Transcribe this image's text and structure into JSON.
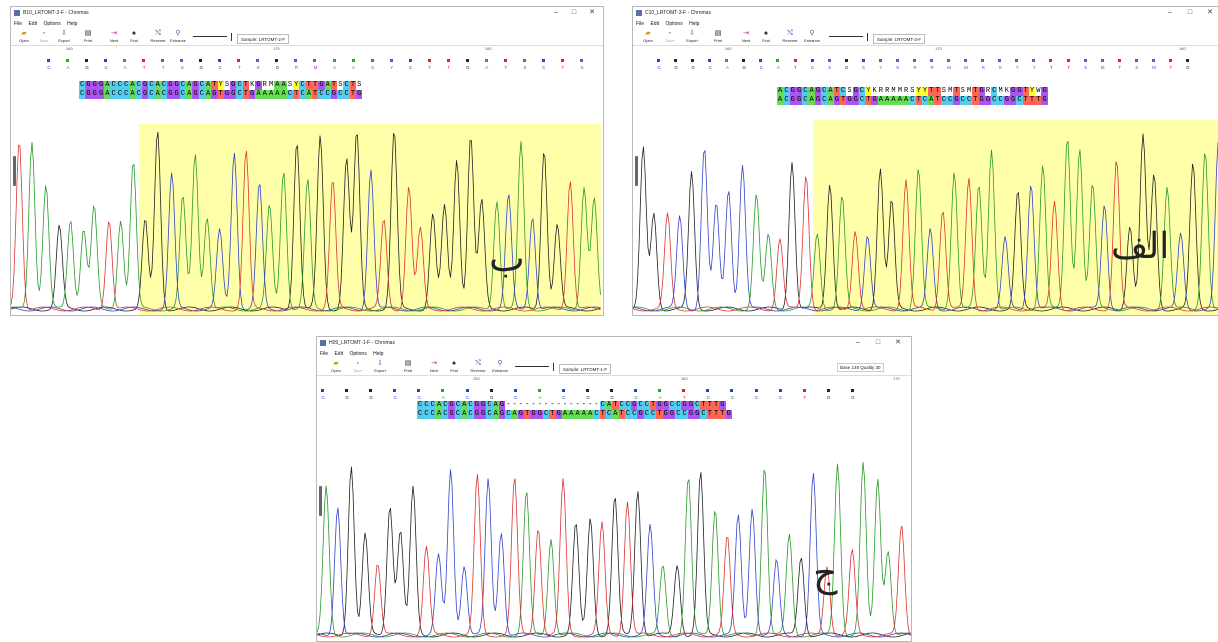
{
  "windows": [
    {
      "id": "b",
      "title": "B10_LRTOMT-2-F - Chromas",
      "menu": [
        "File",
        "Edit",
        "Options",
        "Help"
      ],
      "toolbar": [
        "Open",
        "Save",
        "Export",
        "Print",
        "Next",
        "Find",
        "Reverse",
        "Enhance"
      ],
      "sample": "Sample: LRTOMT-2-F",
      "base_info": "",
      "ticks": [
        "160",
        "170",
        "180"
      ],
      "calls": "CAGCATYSGCTKGRMAASYCTTGATSCTS",
      "seq_top": "CGGGACCCACGCACGGCAGCATYSGCTKGRMAASYCTTGATSCTS",
      "seq_bottom": "CGGGACCCACGCACGGCAGCAGTGGCTGAAAAACTCATCCGCCTG",
      "label": "ب",
      "colors": {
        "A": "#66dd55",
        "C": "#55ccee",
        "G": "#aa55ee",
        "T": "#ff6655",
        "N": "#ffffff",
        "Y": "#ffff33"
      }
    },
    {
      "id": "alef",
      "title": "C10_LRTOMT-3-F - Chromas",
      "menu": [
        "File",
        "Edit",
        "Options",
        "Help"
      ],
      "toolbar": [
        "Open",
        "Save",
        "Export",
        "Print",
        "Next",
        "Find",
        "Reverse",
        "Enhance"
      ],
      "sample": "Sample: LRTOMT-3-F",
      "base_info": "",
      "ticks": [
        "160",
        "170",
        "180"
      ],
      "calls": "CGGCAGCATCSGCYKRRMMRSYYTTSMTSMTG",
      "seq_top": "ACGGCAGCATCSGCYKRRMMRSYYTTSMTSMTGRCMKGGTYWG",
      "seq_bottom": "ACGGCAGCAGTGGCTGAAAAACTCATCCGCCTGGCCGGCTTTG",
      "label": "الف"
    },
    {
      "id": "jim",
      "title": "H09_LRTOMT-1-F - Chromas",
      "menu": [
        "File",
        "Edit",
        "Options",
        "Help"
      ],
      "toolbar": [
        "Open",
        "Save",
        "Export",
        "Print",
        "Next",
        "Find",
        "Reverse",
        "Enhance"
      ],
      "sample": "Sample: LRTOMT-1-F",
      "base_info": "Base 148  Quality 30",
      "ticks": [
        "150",
        "160",
        "170"
      ],
      "calls": "CGGCCACGCACGGCATCCCCTGG",
      "seq_top": "CCCACGCACGGCAG---------------CATCCGCCTGGCCGGCTTTG",
      "seq_bottom": "CCCACGCACGGCAGCAGTGGCTGAAAAACTCATCCGCCTGGCCGGCTTTG",
      "label": "ج"
    }
  ]
}
